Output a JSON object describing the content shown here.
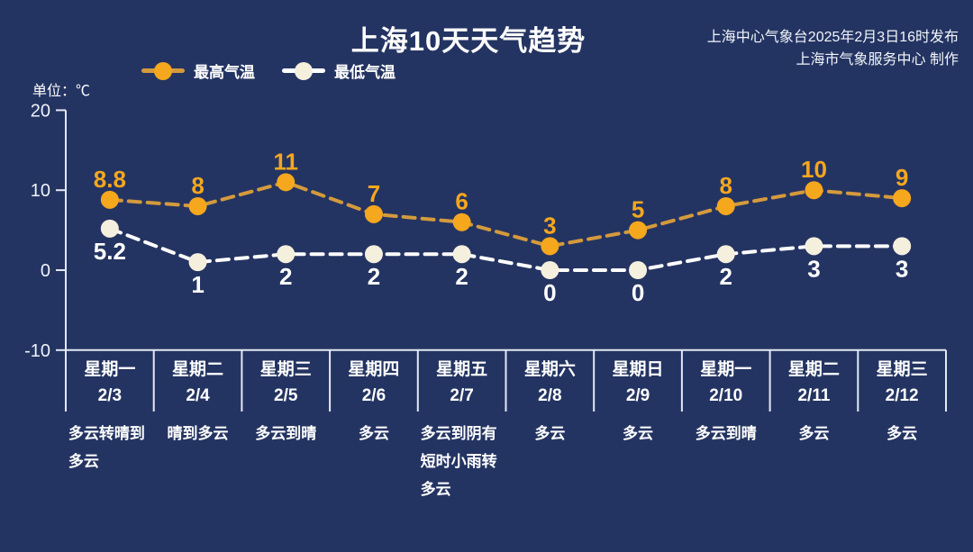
{
  "header": {
    "title": "上海10天天气趋势",
    "source_line1": "上海中心气象台2025年2月3日16时发布",
    "source_line2": "上海市气象服务中心 制作"
  },
  "chart": {
    "unit_label": "单位：℃"
  },
  "chart_data": {
    "type": "line",
    "title": "上海10天天气趋势",
    "categories": [
      "星期一",
      "星期二",
      "星期三",
      "星期四",
      "星期五",
      "星期六",
      "星期日",
      "星期一",
      "星期二",
      "星期三"
    ],
    "dates": [
      "2/3",
      "2/4",
      "2/5",
      "2/6",
      "2/7",
      "2/8",
      "2/9",
      "2/10",
      "2/11",
      "2/12"
    ],
    "series": [
      {
        "name": "最高气温",
        "values": [
          8.8,
          8,
          11,
          7,
          6,
          3,
          5,
          8,
          10,
          9
        ],
        "marker_color": "#f5a71e",
        "line_color": "#d49a3c",
        "label_color": "#f5a71e"
      },
      {
        "name": "最低气温",
        "values": [
          5.2,
          1,
          2,
          2,
          2,
          0,
          0,
          2,
          3,
          3
        ],
        "marker_color": "#f5efde",
        "line_color": "#ffffff",
        "label_color": "#ffffff"
      }
    ],
    "weather": [
      "多云转晴到多云",
      "晴到多云",
      "多云到晴",
      "多云",
      "多云到阴有短时小雨转多云",
      "多云",
      "多云",
      "多云到晴",
      "多云",
      "多云"
    ],
    "y_ticks": [
      "20",
      "10",
      "0",
      "-10"
    ],
    "ylim": [
      -10,
      20
    ],
    "ylabel": "℃",
    "grid": false,
    "line_style": "dashed",
    "legend_position": "top"
  },
  "colors": {
    "background": "#243462",
    "axis": "#e3e9f2",
    "text": "#ffffff"
  }
}
